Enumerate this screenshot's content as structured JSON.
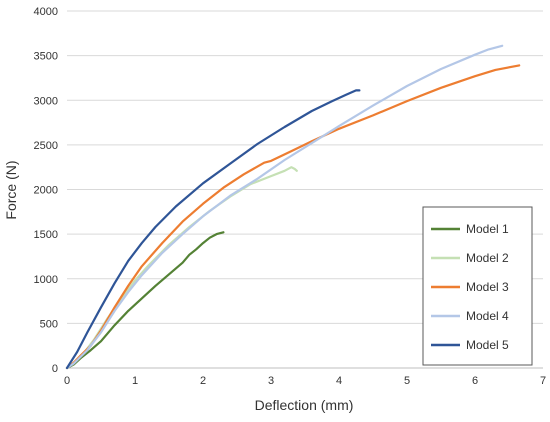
{
  "chart_data": {
    "type": "line",
    "xlabel": "Deflection (mm)",
    "ylabel": "Force (N)",
    "xlim": [
      0,
      7
    ],
    "ylim": [
      0,
      4000
    ],
    "x_ticks": [
      "0",
      "1",
      "2",
      "3",
      "4",
      "5",
      "6",
      "7"
    ],
    "y_ticks": [
      "0",
      "500",
      "1000",
      "1500",
      "2000",
      "2500",
      "3000",
      "3500",
      "4000"
    ],
    "x_tick_values": [
      0,
      1,
      2,
      3,
      4,
      5,
      6,
      7
    ],
    "y_tick_values": [
      0,
      500,
      1000,
      1500,
      2000,
      2500,
      3000,
      3500,
      4000
    ],
    "grid": "horizontal",
    "legend_position": "right",
    "series": [
      {
        "name": "Model 1",
        "color": "#548235",
        "points": [
          [
            0,
            0
          ],
          [
            0.1,
            40
          ],
          [
            0.2,
            110
          ],
          [
            0.35,
            200
          ],
          [
            0.5,
            300
          ],
          [
            0.7,
            480
          ],
          [
            0.9,
            640
          ],
          [
            1.1,
            780
          ],
          [
            1.3,
            920
          ],
          [
            1.5,
            1050
          ],
          [
            1.7,
            1180
          ],
          [
            1.8,
            1270
          ],
          [
            1.9,
            1330
          ],
          [
            2.0,
            1400
          ],
          [
            2.1,
            1460
          ],
          [
            2.2,
            1500
          ],
          [
            2.3,
            1520
          ]
        ]
      },
      {
        "name": "Model 2",
        "color": "#C5E0B4",
        "points": [
          [
            0,
            0
          ],
          [
            0.1,
            60
          ],
          [
            0.25,
            170
          ],
          [
            0.4,
            320
          ],
          [
            0.6,
            560
          ],
          [
            0.8,
            780
          ],
          [
            1.0,
            980
          ],
          [
            1.2,
            1150
          ],
          [
            1.5,
            1380
          ],
          [
            1.8,
            1580
          ],
          [
            2.1,
            1760
          ],
          [
            2.4,
            1920
          ],
          [
            2.7,
            2060
          ],
          [
            3.0,
            2150
          ],
          [
            3.2,
            2210
          ],
          [
            3.3,
            2250
          ],
          [
            3.35,
            2230
          ],
          [
            3.38,
            2210
          ]
        ]
      },
      {
        "name": "Model 3",
        "color": "#ED7D31",
        "points": [
          [
            0,
            0
          ],
          [
            0.1,
            60
          ],
          [
            0.2,
            140
          ],
          [
            0.35,
            250
          ],
          [
            0.5,
            420
          ],
          [
            0.7,
            680
          ],
          [
            0.9,
            920
          ],
          [
            1.1,
            1140
          ],
          [
            1.4,
            1400
          ],
          [
            1.7,
            1640
          ],
          [
            2.0,
            1840
          ],
          [
            2.3,
            2020
          ],
          [
            2.6,
            2170
          ],
          [
            2.9,
            2300
          ],
          [
            3.0,
            2320
          ],
          [
            3.3,
            2430
          ],
          [
            3.6,
            2540
          ],
          [
            4.0,
            2680
          ],
          [
            4.5,
            2830
          ],
          [
            5.0,
            2990
          ],
          [
            5.5,
            3140
          ],
          [
            6.0,
            3270
          ],
          [
            6.3,
            3340
          ],
          [
            6.65,
            3390
          ]
        ]
      },
      {
        "name": "Model 4",
        "color": "#B4C7E7",
        "points": [
          [
            0,
            0
          ],
          [
            0.1,
            50
          ],
          [
            0.3,
            200
          ],
          [
            0.5,
            400
          ],
          [
            0.7,
            640
          ],
          [
            0.9,
            850
          ],
          [
            1.1,
            1040
          ],
          [
            1.4,
            1290
          ],
          [
            1.7,
            1500
          ],
          [
            2.0,
            1700
          ],
          [
            2.4,
            1930
          ],
          [
            2.8,
            2120
          ],
          [
            3.2,
            2330
          ],
          [
            3.6,
            2520
          ],
          [
            4.0,
            2710
          ],
          [
            4.5,
            2940
          ],
          [
            5.0,
            3160
          ],
          [
            5.5,
            3350
          ],
          [
            6.0,
            3510
          ],
          [
            6.2,
            3570
          ],
          [
            6.4,
            3610
          ]
        ]
      },
      {
        "name": "Model 5",
        "color": "#2F5597",
        "points": [
          [
            0,
            0
          ],
          [
            0.05,
            60
          ],
          [
            0.15,
            180
          ],
          [
            0.3,
            400
          ],
          [
            0.5,
            680
          ],
          [
            0.7,
            950
          ],
          [
            0.9,
            1200
          ],
          [
            1.1,
            1400
          ],
          [
            1.3,
            1580
          ],
          [
            1.6,
            1810
          ],
          [
            2.0,
            2070
          ],
          [
            2.4,
            2290
          ],
          [
            2.8,
            2510
          ],
          [
            3.2,
            2700
          ],
          [
            3.6,
            2880
          ],
          [
            3.9,
            2990
          ],
          [
            4.1,
            3060
          ],
          [
            4.25,
            3110
          ],
          [
            4.3,
            3110
          ]
        ]
      }
    ]
  }
}
